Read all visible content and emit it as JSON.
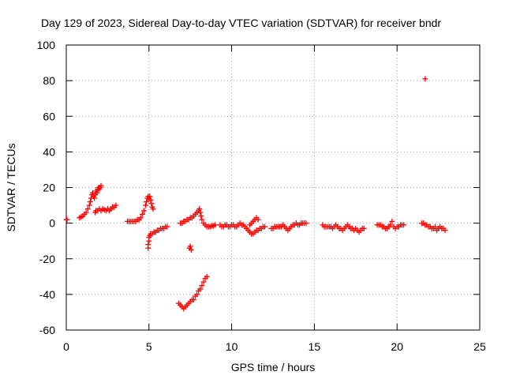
{
  "chart_data": {
    "type": "scatter",
    "title": "Day 129 of 2023, Sidereal Day-to-day VTEC variation (SDTVAR) for receiver bndr",
    "xlabel": "GPS time / hours",
    "ylabel": "SDTVAR / TECUs",
    "xlim": [
      0,
      25
    ],
    "ylim": [
      -60,
      100
    ],
    "xticks": [
      0,
      5,
      10,
      15,
      20,
      25
    ],
    "yticks": [
      -60,
      -40,
      -20,
      0,
      20,
      40,
      60,
      80,
      100
    ],
    "xtick_labels": [
      "0",
      "5",
      "10",
      "15",
      "20",
      "25"
    ],
    "ytick_labels": [
      "-60",
      "-40",
      "-20",
      "0",
      "20",
      "40",
      "60",
      "80",
      "100"
    ],
    "grid": true,
    "marker": "+",
    "series_color": "#ff0000",
    "series": [
      {
        "name": "SDTVAR",
        "points": [
          [
            0.0,
            2
          ],
          [
            0.05,
            2
          ],
          [
            0.8,
            3
          ],
          [
            0.9,
            3.5
          ],
          [
            1.0,
            4
          ],
          [
            1.1,
            5
          ],
          [
            1.2,
            6
          ],
          [
            1.3,
            8
          ],
          [
            1.4,
            10
          ],
          [
            1.45,
            12
          ],
          [
            1.5,
            14
          ],
          [
            1.55,
            16
          ],
          [
            1.6,
            17
          ],
          [
            1.65,
            15
          ],
          [
            1.7,
            14
          ],
          [
            1.75,
            16
          ],
          [
            1.8,
            18
          ],
          [
            1.85,
            17
          ],
          [
            1.9,
            19
          ],
          [
            1.95,
            20
          ],
          [
            2.0,
            19
          ],
          [
            2.05,
            20
          ],
          [
            2.1,
            21
          ],
          [
            1.75,
            6
          ],
          [
            1.8,
            7
          ],
          [
            1.9,
            7
          ],
          [
            2.0,
            8
          ],
          [
            2.1,
            7
          ],
          [
            2.2,
            8
          ],
          [
            2.3,
            7.5
          ],
          [
            2.4,
            7
          ],
          [
            2.5,
            8
          ],
          [
            2.6,
            7
          ],
          [
            2.7,
            8
          ],
          [
            2.8,
            9
          ],
          [
            2.9,
            9
          ],
          [
            3.0,
            10
          ],
          [
            3.7,
            1
          ],
          [
            3.8,
            1
          ],
          [
            3.9,
            1
          ],
          [
            4.0,
            1
          ],
          [
            4.1,
            1
          ],
          [
            4.2,
            1
          ],
          [
            4.3,
            2
          ],
          [
            4.4,
            2
          ],
          [
            4.5,
            3
          ],
          [
            4.6,
            5
          ],
          [
            4.7,
            7
          ],
          [
            4.8,
            10
          ],
          [
            4.85,
            12
          ],
          [
            4.9,
            14
          ],
          [
            4.95,
            15
          ],
          [
            5.0,
            14
          ],
          [
            5.05,
            15
          ],
          [
            5.1,
            13
          ],
          [
            5.15,
            11
          ],
          [
            5.2,
            9
          ],
          [
            5.25,
            8
          ],
          [
            4.95,
            -14
          ],
          [
            4.95,
            -12
          ],
          [
            5.0,
            -10
          ],
          [
            5.0,
            -8
          ],
          [
            5.05,
            -7
          ],
          [
            5.1,
            -6
          ],
          [
            5.2,
            -6
          ],
          [
            5.3,
            -5
          ],
          [
            5.4,
            -5
          ],
          [
            5.5,
            -4
          ],
          [
            5.6,
            -4
          ],
          [
            5.7,
            -3
          ],
          [
            5.8,
            -3
          ],
          [
            5.9,
            -3
          ],
          [
            6.0,
            -2
          ],
          [
            6.1,
            -2
          ],
          [
            6.9,
            0
          ],
          [
            7.0,
            0
          ],
          [
            7.1,
            1
          ],
          [
            7.2,
            1
          ],
          [
            7.3,
            2
          ],
          [
            7.4,
            2
          ],
          [
            7.5,
            3
          ],
          [
            7.6,
            3
          ],
          [
            7.7,
            4
          ],
          [
            7.8,
            5
          ],
          [
            7.9,
            6
          ],
          [
            8.0,
            7
          ],
          [
            8.05,
            8
          ],
          [
            8.1,
            6
          ],
          [
            8.15,
            4
          ],
          [
            8.2,
            2
          ],
          [
            8.3,
            0
          ],
          [
            8.4,
            -1
          ],
          [
            8.5,
            -2
          ],
          [
            8.6,
            -2
          ],
          [
            8.7,
            -2
          ],
          [
            8.8,
            -1.5
          ],
          [
            8.9,
            -1.5
          ],
          [
            9.0,
            -1
          ],
          [
            7.45,
            -14
          ],
          [
            7.5,
            -13
          ],
          [
            7.55,
            -15
          ],
          [
            6.8,
            -45
          ],
          [
            6.9,
            -46
          ],
          [
            7.0,
            -47
          ],
          [
            7.1,
            -48
          ],
          [
            7.2,
            -47
          ],
          [
            7.3,
            -46
          ],
          [
            7.4,
            -45
          ],
          [
            7.5,
            -44
          ],
          [
            7.6,
            -43
          ],
          [
            7.7,
            -43
          ],
          [
            7.8,
            -41
          ],
          [
            7.9,
            -40
          ],
          [
            8.0,
            -38
          ],
          [
            8.1,
            -37
          ],
          [
            8.2,
            -35
          ],
          [
            8.3,
            -33
          ],
          [
            8.4,
            -31
          ],
          [
            8.5,
            -30
          ],
          [
            9.3,
            -1
          ],
          [
            9.4,
            -2
          ],
          [
            9.5,
            -2
          ],
          [
            9.6,
            -1
          ],
          [
            9.7,
            -1
          ],
          [
            9.8,
            -2
          ],
          [
            9.9,
            -2
          ],
          [
            10.0,
            -1
          ],
          [
            10.1,
            -1
          ],
          [
            10.2,
            -2
          ],
          [
            10.3,
            -2
          ],
          [
            10.4,
            -1
          ],
          [
            10.5,
            0
          ],
          [
            10.6,
            -1
          ],
          [
            10.7,
            -1
          ],
          [
            10.8,
            -2
          ],
          [
            10.9,
            -3
          ],
          [
            11.0,
            -4
          ],
          [
            11.1,
            -5
          ],
          [
            11.2,
            -6
          ],
          [
            11.3,
            -6
          ],
          [
            11.4,
            -5
          ],
          [
            11.5,
            -4
          ],
          [
            11.6,
            -4
          ],
          [
            11.7,
            -3
          ],
          [
            11.8,
            -3
          ],
          [
            11.9,
            -2
          ],
          [
            12.0,
            -2
          ],
          [
            11.1,
            -1
          ],
          [
            11.2,
            0
          ],
          [
            11.3,
            1
          ],
          [
            11.4,
            2
          ],
          [
            11.5,
            3
          ],
          [
            11.6,
            2
          ],
          [
            12.4,
            -3
          ],
          [
            12.5,
            -3
          ],
          [
            12.6,
            -2
          ],
          [
            12.7,
            -2
          ],
          [
            12.8,
            -2
          ],
          [
            12.9,
            -2
          ],
          [
            13.0,
            -2
          ],
          [
            13.1,
            -1
          ],
          [
            13.2,
            -2
          ],
          [
            13.3,
            -3
          ],
          [
            13.4,
            -4
          ],
          [
            13.5,
            -3
          ],
          [
            13.6,
            -2
          ],
          [
            13.7,
            -1
          ],
          [
            13.8,
            -1
          ],
          [
            13.9,
            0
          ],
          [
            14.0,
            -1
          ],
          [
            14.1,
            -1
          ],
          [
            14.2,
            0
          ],
          [
            14.3,
            0
          ],
          [
            14.4,
            0
          ],
          [
            14.5,
            0
          ],
          [
            15.5,
            -1
          ],
          [
            15.6,
            -2
          ],
          [
            15.7,
            -2
          ],
          [
            15.8,
            -2
          ],
          [
            15.9,
            -2
          ],
          [
            16.0,
            -2
          ],
          [
            16.1,
            -3
          ],
          [
            16.2,
            -2
          ],
          [
            16.3,
            -1
          ],
          [
            16.4,
            -2
          ],
          [
            16.5,
            -3
          ],
          [
            16.6,
            -3
          ],
          [
            16.7,
            -4
          ],
          [
            16.8,
            -3
          ],
          [
            16.9,
            -2
          ],
          [
            17.0,
            -1
          ],
          [
            17.1,
            -2
          ],
          [
            17.2,
            -3
          ],
          [
            17.3,
            -3
          ],
          [
            17.4,
            -4
          ],
          [
            17.5,
            -3
          ],
          [
            17.6,
            -4
          ],
          [
            17.7,
            -5
          ],
          [
            17.8,
            -4
          ],
          [
            17.9,
            -3
          ],
          [
            18.0,
            -3
          ],
          [
            18.8,
            -1
          ],
          [
            18.9,
            -1
          ],
          [
            19.0,
            -1
          ],
          [
            19.1,
            -2
          ],
          [
            19.2,
            -2
          ],
          [
            19.3,
            -3
          ],
          [
            19.4,
            -3
          ],
          [
            19.5,
            -2
          ],
          [
            19.6,
            -1
          ],
          [
            19.7,
            1
          ],
          [
            19.8,
            -2
          ],
          [
            19.9,
            -3
          ],
          [
            20.0,
            -2
          ],
          [
            20.1,
            -2
          ],
          [
            20.2,
            -1
          ],
          [
            20.3,
            -1
          ],
          [
            20.4,
            -1
          ],
          [
            21.5,
            0
          ],
          [
            21.6,
            0
          ],
          [
            21.7,
            -1
          ],
          [
            21.8,
            -1
          ],
          [
            21.9,
            -2
          ],
          [
            22.0,
            -2
          ],
          [
            22.1,
            -3
          ],
          [
            22.2,
            -3
          ],
          [
            22.3,
            -2
          ],
          [
            22.4,
            -4
          ],
          [
            22.5,
            -3
          ],
          [
            22.6,
            -2
          ],
          [
            22.7,
            -3
          ],
          [
            22.8,
            -3
          ],
          [
            22.9,
            -4
          ],
          [
            21.7,
            81
          ]
        ]
      }
    ]
  }
}
